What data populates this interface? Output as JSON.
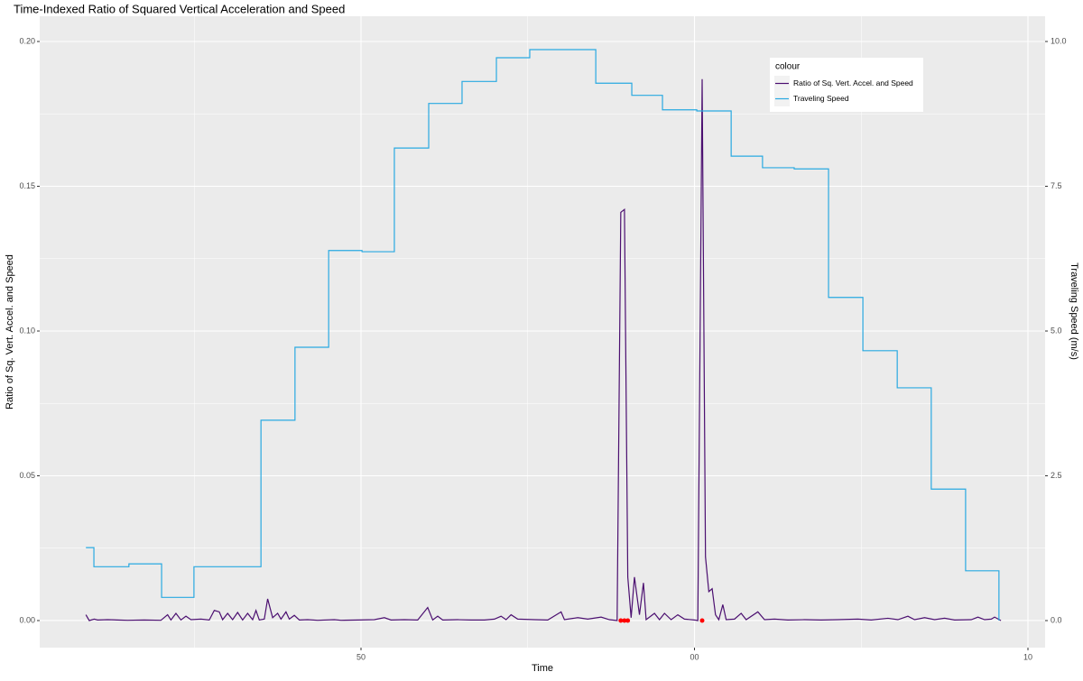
{
  "chart_data": {
    "type": "line",
    "title": "Time-Indexed Ratio of Squared Vertical Acceleration and Speed",
    "xlabel": "Time",
    "ylabel": "Ratio of Sq. Vert. Accel. and Speed",
    "y2label": "Traveling Speed (m/s)",
    "xlim": [
      40.365,
      70.514
    ],
    "xticks": [
      50,
      {
        "value": 60,
        "label": "00"
      },
      {
        "value": 70,
        "label": "10"
      }
    ],
    "ylim": [
      -0.00935,
      0.20872
    ],
    "yticks": [
      {
        "value": 0,
        "label": "0.00"
      },
      0.05,
      {
        "value": 0.1,
        "label": "0.10"
      },
      0.15,
      {
        "value": 0.2,
        "label": "0.20"
      }
    ],
    "y2lim": [
      -0.467,
      10.436
    ],
    "y2ticks": [
      {
        "value": 0,
        "label": "0.0"
      },
      2.5,
      {
        "value": 5,
        "label": "5.0"
      },
      7.5,
      {
        "value": 10,
        "label": "10.0"
      }
    ],
    "grid": true,
    "legend_title": "colour",
    "legend": "top-right",
    "series": [
      {
        "name": "Ratio of Sq. Vert. Accel. and Speed",
        "color": "#4b0f70",
        "style": "line",
        "axis": "y",
        "x": [
          41.75,
          41.85,
          42.0,
          42.1,
          42.4,
          42.7,
          43.0,
          43.5,
          44.0,
          44.2,
          44.3,
          44.45,
          44.6,
          44.75,
          44.9,
          45.2,
          45.45,
          45.6,
          45.75,
          45.85,
          46.0,
          46.15,
          46.3,
          46.45,
          46.6,
          46.75,
          46.85,
          46.95,
          47.1,
          47.2,
          47.35,
          47.5,
          47.6,
          47.75,
          47.85,
          48.0,
          48.15,
          48.4,
          48.7,
          49.2,
          49.4,
          49.9,
          50.4,
          50.7,
          50.9,
          51.3,
          51.7,
          52.0,
          52.15,
          52.3,
          52.45,
          52.9,
          53.3,
          53.7,
          54.0,
          54.2,
          54.35,
          54.5,
          54.7,
          55.2,
          55.6,
          56.0,
          56.1,
          56.5,
          56.8,
          57.2,
          57.45,
          57.68,
          57.79,
          57.9,
          58.0,
          58.1,
          58.2,
          58.35,
          58.47,
          58.55,
          58.8,
          58.95,
          59.1,
          59.3,
          59.5,
          59.7,
          60.0,
          60.1,
          60.23,
          60.33,
          60.43,
          60.53,
          60.63,
          60.73,
          60.85,
          60.95,
          61.2,
          61.4,
          61.55,
          61.9,
          62.1,
          62.4,
          62.8,
          63.3,
          63.8,
          64.3,
          64.9,
          65.3,
          65.8,
          66.1,
          66.4,
          66.6,
          66.9,
          67.2,
          67.5,
          67.8,
          68.3,
          68.5,
          68.7,
          68.9,
          69.0,
          69.19
        ],
        "values": [
          0.002,
          0.0,
          0.0005,
          0.0002,
          0.0003,
          0.0002,
          0.0001,
          0.0002,
          0.0001,
          0.002,
          0.0002,
          0.0025,
          0.0002,
          0.0015,
          0.0003,
          0.0005,
          0.0002,
          0.0035,
          0.003,
          0.0003,
          0.0025,
          0.0003,
          0.0028,
          0.0002,
          0.0025,
          0.0003,
          0.0035,
          0.0002,
          0.0005,
          0.0075,
          0.001,
          0.0025,
          0.0005,
          0.003,
          0.0005,
          0.0018,
          0.0002,
          0.0003,
          0.0001,
          0.0003,
          0.0001,
          0.0002,
          0.0003,
          0.001,
          0.0002,
          0.0003,
          0.0002,
          0.0045,
          0.0002,
          0.0015,
          0.0002,
          0.0003,
          0.0002,
          0.0002,
          0.0005,
          0.0015,
          0.0003,
          0.002,
          0.0005,
          0.0003,
          0.0002,
          0.003,
          0.0003,
          0.001,
          0.0005,
          0.0012,
          0.0003,
          0.0,
          0.141,
          0.142,
          0.015,
          0.001,
          0.015,
          0.002,
          0.013,
          0.0003,
          0.0025,
          0.0003,
          0.0025,
          0.0003,
          0.002,
          0.0005,
          0.0002,
          0.0,
          0.187,
          0.022,
          0.01,
          0.011,
          0.002,
          0.0003,
          0.0055,
          0.0003,
          0.0005,
          0.0025,
          0.0003,
          0.003,
          0.0003,
          0.0005,
          0.0002,
          0.0003,
          0.0002,
          0.0003,
          0.0005,
          0.0002,
          0.0008,
          0.0003,
          0.0015,
          0.0003,
          0.001,
          0.0003,
          0.0008,
          0.0002,
          0.0003,
          0.0012,
          0.0003,
          0.0005,
          0.0012,
          0.0
        ]
      },
      {
        "name": "Traveling Speed",
        "color": "#29a9e1",
        "style": "step",
        "axis": "y2",
        "x": [
          41.75,
          41.99,
          43.04,
          44.02,
          44.99,
          47.0,
          48.02,
          49.03,
          50.03,
          51.0,
          52.03,
          53.03,
          54.06,
          55.06,
          57.04,
          58.12,
          59.04,
          60.07,
          61.1,
          62.04,
          62.99,
          64.02,
          65.05,
          66.08,
          67.1,
          68.13,
          69.13
        ],
        "values": [
          1.26,
          0.93,
          0.98,
          0.4,
          0.93,
          3.46,
          4.72,
          6.39,
          6.37,
          8.16,
          8.93,
          9.31,
          9.72,
          9.86,
          9.28,
          9.07,
          8.82,
          8.8,
          8.02,
          7.82,
          7.8,
          5.58,
          4.66,
          4.02,
          2.27,
          0.86,
          0
        ]
      },
      {
        "color": "#ff0000",
        "style": "points",
        "axis": "y",
        "x": [
          57.79,
          57.9,
          58.0,
          60.23
        ],
        "values": [
          0,
          0,
          0,
          0
        ]
      }
    ]
  }
}
